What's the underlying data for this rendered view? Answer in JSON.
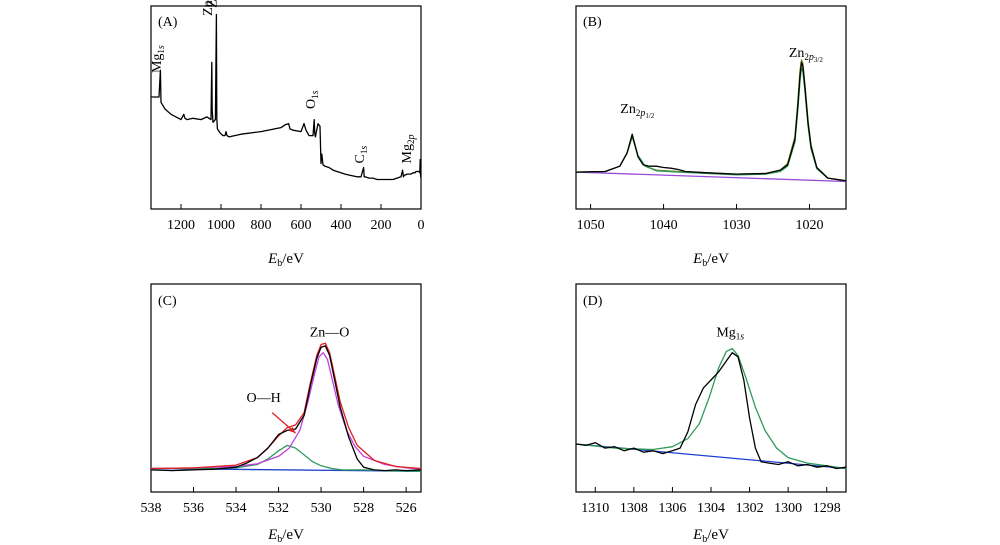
{
  "colors": {
    "data": "#000000",
    "fit_green": "#2e9a5a",
    "fit_olive": "#7a8a1f",
    "fit_red": "#e02020",
    "fit_magenta": "#c040e0",
    "baseline_blue": "#1f3fd0",
    "baseline_purple": "#9a4ad8"
  },
  "chart_data": [
    {
      "id": "A",
      "type": "line",
      "label": "(A)",
      "xlabel_main": "E",
      "xlabel_sub": "b",
      "xlabel_unit": "/eV",
      "xlim": [
        1350,
        0
      ],
      "ylim": [
        0,
        1
      ],
      "xticks": [
        1200,
        1000,
        800,
        600,
        400,
        200,
        0
      ],
      "xtick_labels": [
        "1200",
        "1000",
        "800",
        "600",
        "400",
        "200",
        "0"
      ],
      "annotations": [
        {
          "base": "Mg",
          "sub": "1s",
          "x": 1300,
          "y": 0.9,
          "rotate": true
        },
        {
          "base": "Zn",
          "sub": "2p1/2",
          "x": 1045,
          "y": 1.33,
          "rotate": true
        },
        {
          "base": "Zn",
          "sub": "2p3/2",
          "x": 1022,
          "y": 1.39,
          "rotate": true
        },
        {
          "base": "O",
          "sub": "1s",
          "x": 531,
          "y": 0.63,
          "rotate": true
        },
        {
          "base": "C",
          "sub": "1s",
          "x": 285,
          "y": 0.22,
          "rotate": true
        },
        {
          "base": "Mg",
          "sub": "2p",
          "x": 50,
          "y": 0.22,
          "rotate": true
        }
      ],
      "series": [
        {
          "name": "survey",
          "color": "#000000",
          "x": [
            1350,
            1310,
            1303,
            1300,
            1280,
            1250,
            1200,
            1186,
            1180,
            1170,
            1140,
            1100,
            1070,
            1050,
            1046,
            1044,
            1040,
            1028,
            1023,
            1021,
            1018,
            1005,
            990,
            980,
            975,
            970,
            960,
            900,
            800,
            700,
            680,
            662,
            655,
            640,
            600,
            585,
            575,
            560,
            540,
            534,
            531,
            528,
            515,
            505,
            500,
            496,
            490,
            480,
            460,
            440,
            420,
            400,
            380,
            350,
            320,
            300,
            287,
            284,
            280,
            260,
            240,
            220,
            200,
            180,
            160,
            140,
            120,
            100,
            92,
            88,
            85,
            70,
            60,
            50,
            40,
            30,
            25,
            20,
            10,
            6,
            4,
            2,
            0
          ],
          "y": [
            0.72,
            0.72,
            0.92,
            0.68,
            0.63,
            0.59,
            0.55,
            0.59,
            0.56,
            0.55,
            0.56,
            0.55,
            0.57,
            0.55,
            0.98,
            0.62,
            0.53,
            0.55,
            1.34,
            0.56,
            0.48,
            0.45,
            0.43,
            0.43,
            0.46,
            0.43,
            0.42,
            0.44,
            0.46,
            0.49,
            0.51,
            0.52,
            0.48,
            0.47,
            0.46,
            0.52,
            0.47,
            0.43,
            0.43,
            0.55,
            0.44,
            0.42,
            0.52,
            0.5,
            0.22,
            0.29,
            0.21,
            0.2,
            0.19,
            0.17,
            0.16,
            0.15,
            0.14,
            0.13,
            0.12,
            0.12,
            0.19,
            0.12,
            0.12,
            0.11,
            0.11,
            0.1,
            0.1,
            0.1,
            0.1,
            0.1,
            0.11,
            0.12,
            0.17,
            0.12,
            0.13,
            0.14,
            0.14,
            0.14,
            0.15,
            0.15,
            0.16,
            0.16,
            0.16,
            0.15,
            0.25,
            0.12,
            0.13
          ]
        }
      ]
    },
    {
      "id": "B",
      "type": "line",
      "label": "(B)",
      "xlabel_main": "E",
      "xlabel_sub": "b",
      "xlabel_unit": "/eV",
      "xlim": [
        1052,
        1015
      ],
      "ylim": [
        0,
        1
      ],
      "xticks": [
        1050,
        1040,
        1030,
        1020
      ],
      "xtick_labels": [
        "1050",
        "1040",
        "1030",
        "1020"
      ],
      "annotations": [
        {
          "base": "Zn",
          "sub": "2p1/2",
          "x": 1043.6,
          "y": 0.6,
          "rotate": false
        },
        {
          "base": "Zn",
          "sub": "2p3/2",
          "x": 1020.5,
          "y": 1.02,
          "rotate": false
        }
      ],
      "series": [
        {
          "name": "baseline",
          "color": "#9a4ad8",
          "x": [
            1052,
            1015
          ],
          "y": [
            0.155,
            0.085
          ]
        },
        {
          "name": "fit-olive",
          "color": "#7a8a1f",
          "x": [
            1052,
            1048,
            1046,
            1045,
            1044.3,
            1043.5,
            1042.5,
            1041,
            1038,
            1034,
            1030,
            1026,
            1024,
            1023,
            1022,
            1021.6,
            1021.3,
            1021.1,
            1020.9,
            1020.6,
            1020.2,
            1019.8,
            1019,
            1017.5,
            1015
          ],
          "y": [
            0.155,
            0.16,
            0.2,
            0.3,
            0.42,
            0.28,
            0.2,
            0.17,
            0.16,
            0.15,
            0.14,
            0.145,
            0.17,
            0.22,
            0.42,
            0.68,
            0.92,
            1.0,
            0.97,
            0.8,
            0.54,
            0.36,
            0.19,
            0.11,
            0.09
          ]
        },
        {
          "name": "fit-green",
          "color": "#2e9a5a",
          "x": [
            1052,
            1048,
            1046,
            1045,
            1044.3,
            1043.5,
            1042.5,
            1041,
            1038,
            1034,
            1030,
            1026,
            1024,
            1023,
            1022,
            1021.6,
            1021.3,
            1021.1,
            1020.9,
            1020.6,
            1020.2,
            1019.8,
            1019,
            1017.5,
            1015
          ],
          "y": [
            0.155,
            0.16,
            0.2,
            0.3,
            0.43,
            0.28,
            0.2,
            0.165,
            0.155,
            0.145,
            0.135,
            0.14,
            0.16,
            0.2,
            0.38,
            0.62,
            0.84,
            0.94,
            0.91,
            0.75,
            0.5,
            0.33,
            0.18,
            0.11,
            0.09
          ]
        },
        {
          "name": "data",
          "color": "#000000",
          "x": [
            1052,
            1048,
            1046,
            1045,
            1044.3,
            1043.5,
            1042.8,
            1042,
            1041,
            1040,
            1039,
            1038,
            1037,
            1034,
            1030,
            1026,
            1024,
            1023,
            1022,
            1021.6,
            1021.3,
            1021.1,
            1020.9,
            1020.6,
            1020.2,
            1019.8,
            1019,
            1017.5,
            1015
          ],
          "y": [
            0.155,
            0.16,
            0.2,
            0.3,
            0.44,
            0.27,
            0.21,
            0.2,
            0.2,
            0.19,
            0.185,
            0.175,
            0.16,
            0.15,
            0.14,
            0.145,
            0.17,
            0.21,
            0.4,
            0.65,
            0.88,
            0.98,
            0.95,
            0.78,
            0.52,
            0.35,
            0.19,
            0.11,
            0.09
          ]
        }
      ]
    },
    {
      "id": "C",
      "type": "line",
      "label": "(C)",
      "xlabel_main": "E",
      "xlabel_sub": "b",
      "xlabel_unit": "/eV",
      "xlim": [
        538,
        525.3
      ],
      "ylim": [
        0,
        1
      ],
      "xticks": [
        538,
        536,
        534,
        532,
        530,
        528,
        526
      ],
      "xtick_labels": [
        "538",
        "536",
        "534",
        "532",
        "530",
        "528",
        "526"
      ],
      "annotations": [
        {
          "base": "Zn—O",
          "sub": "",
          "x": 529.6,
          "y": 1.02,
          "rotate": false
        },
        {
          "base": "O—H",
          "sub": "",
          "x": 532.7,
          "y": 0.54,
          "rotate": false
        }
      ],
      "arrow": {
        "x1": 532.3,
        "y1": 0.46,
        "x2": 531.2,
        "y2": 0.31,
        "color": "#e02020"
      },
      "series": [
        {
          "name": "baseline",
          "color": "#1f3fd0",
          "x": [
            538,
            525.3
          ],
          "y": [
            0.05,
            0.03
          ]
        },
        {
          "name": "OH-component",
          "color": "#2e9a5a",
          "x": [
            538,
            535,
            534,
            533,
            532.5,
            532,
            531.6,
            531.2,
            530.8,
            530.4,
            530,
            529.5,
            529,
            528,
            527,
            525.3
          ],
          "y": [
            0.05,
            0.05,
            0.055,
            0.08,
            0.12,
            0.18,
            0.22,
            0.2,
            0.15,
            0.1,
            0.07,
            0.05,
            0.04,
            0.04,
            0.035,
            0.03
          ]
        },
        {
          "name": "ZnO-component",
          "color": "#c040e0",
          "x": [
            538,
            536,
            534,
            533,
            532,
            531.5,
            531,
            530.6,
            530.3,
            530.1,
            529.9,
            529.7,
            529.5,
            529.2,
            528.8,
            528.4,
            528,
            527,
            526,
            525.3
          ],
          "y": [
            0.05,
            0.055,
            0.065,
            0.085,
            0.14,
            0.2,
            0.33,
            0.55,
            0.75,
            0.87,
            0.9,
            0.85,
            0.72,
            0.52,
            0.33,
            0.21,
            0.14,
            0.08,
            0.055,
            0.045
          ]
        },
        {
          "name": "envelope",
          "color": "#e02020",
          "x": [
            538,
            536,
            534,
            533,
            532.5,
            532,
            531.6,
            531.2,
            530.8,
            530.5,
            530.2,
            530,
            529.8,
            529.6,
            529.4,
            529.1,
            528.7,
            528.3,
            527.5,
            526.5,
            525.3
          ],
          "y": [
            0.05,
            0.055,
            0.075,
            0.13,
            0.2,
            0.29,
            0.35,
            0.37,
            0.46,
            0.68,
            0.88,
            0.96,
            0.97,
            0.9,
            0.76,
            0.54,
            0.35,
            0.22,
            0.11,
            0.065,
            0.05
          ]
        },
        {
          "name": "data",
          "color": "#000000",
          "x": [
            538,
            537,
            536,
            535,
            534,
            533.5,
            533,
            532.5,
            532,
            531.6,
            531.2,
            530.8,
            530.5,
            530.2,
            530,
            529.8,
            529.6,
            529.4,
            529.1,
            528.7,
            528.3,
            528,
            527.5,
            527,
            526.5,
            526,
            525.3
          ],
          "y": [
            0.04,
            0.035,
            0.04,
            0.045,
            0.06,
            0.09,
            0.13,
            0.2,
            0.3,
            0.33,
            0.34,
            0.44,
            0.66,
            0.86,
            0.94,
            0.95,
            0.88,
            0.73,
            0.5,
            0.28,
            0.12,
            0.06,
            0.04,
            0.035,
            0.04,
            0.035,
            0.04
          ]
        }
      ]
    },
    {
      "id": "D",
      "type": "line",
      "label": "(D)",
      "xlabel_main": "E",
      "xlabel_sub": "b",
      "xlabel_unit": "/eV",
      "xlim": [
        1311,
        1297
      ],
      "ylim": [
        0,
        1
      ],
      "xticks": [
        1310,
        1308,
        1306,
        1304,
        1302,
        1300,
        1298
      ],
      "xtick_labels": [
        "1310",
        "1308",
        "1306",
        "1304",
        "1302",
        "1300",
        "1298"
      ],
      "annotations": [
        {
          "base": "Mg",
          "sub": "1s",
          "x": 1303.0,
          "y": 1.02,
          "rotate": false
        }
      ],
      "series": [
        {
          "name": "baseline",
          "color": "#1f3fd0",
          "x": [
            1311,
            1297
          ],
          "y": [
            0.23,
            0.05
          ]
        },
        {
          "name": "fit-green",
          "color": "#2e9a5a",
          "x": [
            1311,
            1309,
            1307,
            1306,
            1305.2,
            1304.6,
            1304.1,
            1303.6,
            1303.2,
            1302.9,
            1302.6,
            1302.2,
            1301.7,
            1301.2,
            1300.6,
            1300,
            1299,
            1298,
            1297
          ],
          "y": [
            0.23,
            0.2,
            0.19,
            0.21,
            0.27,
            0.38,
            0.57,
            0.79,
            0.91,
            0.93,
            0.88,
            0.72,
            0.5,
            0.33,
            0.2,
            0.13,
            0.09,
            0.07,
            0.05
          ]
        },
        {
          "name": "data",
          "color": "#000000",
          "x": [
            1311,
            1310.5,
            1310,
            1309.5,
            1309,
            1308.5,
            1308,
            1307.5,
            1307,
            1306.5,
            1306,
            1305.6,
            1305.2,
            1304.8,
            1304.4,
            1304,
            1303.6,
            1303.2,
            1302.9,
            1302.6,
            1302.3,
            1302,
            1301.7,
            1301.4,
            1301,
            1300.5,
            1300,
            1299.5,
            1299,
            1298.5,
            1298,
            1297.5,
            1297
          ],
          "y": [
            0.23,
            0.22,
            0.24,
            0.2,
            0.21,
            0.18,
            0.2,
            0.17,
            0.18,
            0.16,
            0.18,
            0.2,
            0.32,
            0.52,
            0.64,
            0.7,
            0.76,
            0.84,
            0.9,
            0.87,
            0.7,
            0.42,
            0.2,
            0.1,
            0.09,
            0.08,
            0.1,
            0.07,
            0.08,
            0.06,
            0.07,
            0.05,
            0.06
          ]
        }
      ]
    }
  ]
}
